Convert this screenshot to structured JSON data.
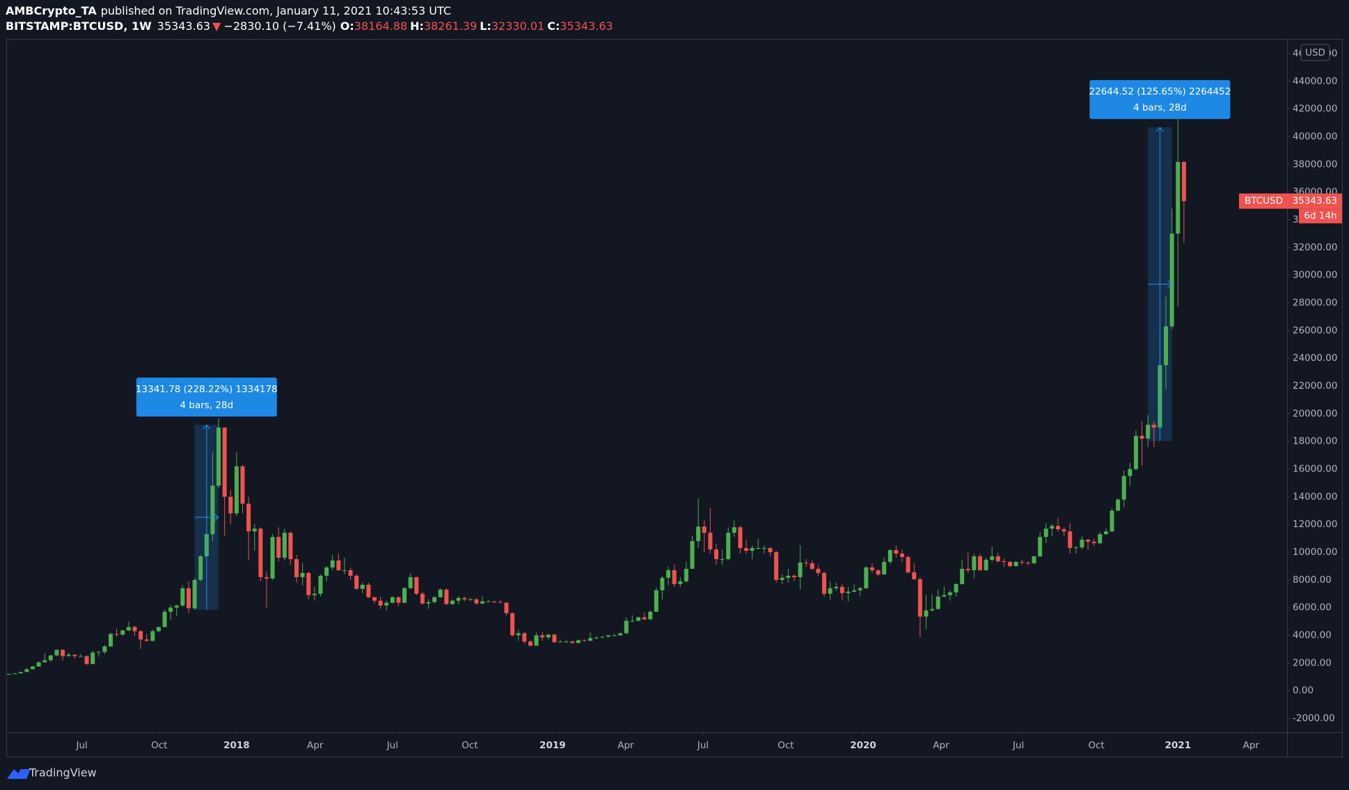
{
  "header": {
    "author": "AMBCrypto_TA",
    "published": "published on TradingView.com, January 11, 2021 10:43:53 UTC",
    "symbol": "BITSTAMP:BTCUSD, 1W",
    "last": "35343.63",
    "direction": "▼",
    "change": "−2830.10 (−7.41%)",
    "ohlc": [
      {
        "key": "O:",
        "value": "38164.88"
      },
      {
        "key": "H:",
        "value": "38261.39"
      },
      {
        "key": "L:",
        "value": "32330.01"
      },
      {
        "key": "C:",
        "value": "35343.63"
      }
    ]
  },
  "footer": {
    "brand": "TradingView"
  },
  "chart_data": {
    "type": "candlestick",
    "currency": "USD",
    "up_color": "#4caf50",
    "down_color": "#ef5350",
    "grid": false,
    "xlim": [
      -0.3,
      213.2
    ],
    "xticks": [
      {
        "value": 12.2,
        "label": "Jul"
      },
      {
        "value": 25.1,
        "label": "Oct"
      },
      {
        "value": 38,
        "label": "2018"
      },
      {
        "value": 51.1,
        "label": "Apr"
      },
      {
        "value": 64,
        "label": "Jul"
      },
      {
        "value": 76.9,
        "label": "Oct"
      },
      {
        "value": 90.7,
        "label": "2019"
      },
      {
        "value": 102.9,
        "label": "Apr"
      },
      {
        "value": 115.8,
        "label": "Jul"
      },
      {
        "value": 129.6,
        "label": "Oct"
      },
      {
        "value": 142.5,
        "label": "2020"
      },
      {
        "value": 155.5,
        "label": "Apr"
      },
      {
        "value": 168.4,
        "label": "Jul"
      },
      {
        "value": 181.4,
        "label": "Oct"
      },
      {
        "value": 195,
        "label": "2021"
      },
      {
        "value": 207.2,
        "label": "Apr"
      }
    ],
    "ylim": [
      -3000,
      47000
    ],
    "yticks": [
      {
        "value": -2000,
        "label": "-2000.00"
      },
      {
        "value": 0,
        "label": "0.00"
      },
      {
        "value": 2000,
        "label": "2000.00"
      },
      {
        "value": 4000,
        "label": "4000.00"
      },
      {
        "value": 6000,
        "label": "6000.00"
      },
      {
        "value": 8000,
        "label": "8000.00"
      },
      {
        "value": 10000,
        "label": "10000.00"
      },
      {
        "value": 12000,
        "label": "12000.00"
      },
      {
        "value": 14000,
        "label": "14000.00"
      },
      {
        "value": 16000,
        "label": "16000.00"
      },
      {
        "value": 18000,
        "label": "18000.00"
      },
      {
        "value": 20000,
        "label": "20000.00"
      },
      {
        "value": 22000,
        "label": "22000.00"
      },
      {
        "value": 24000,
        "label": "24000.00"
      },
      {
        "value": 26000,
        "label": "26000.00"
      },
      {
        "value": 28000,
        "label": "28000.00"
      },
      {
        "value": 30000,
        "label": "30000.00"
      },
      {
        "value": 32000,
        "label": "32000.00"
      },
      {
        "value": 34000,
        "label": "34000.00"
      },
      {
        "value": 36000,
        "label": "36000.00"
      },
      {
        "value": 38000,
        "label": "38000.00"
      },
      {
        "value": 40000,
        "label": "40000.00"
      },
      {
        "value": 42000,
        "label": "42000.00"
      },
      {
        "value": 44000,
        "label": "44000.00"
      },
      {
        "value": 46000,
        "label": "46000.00"
      }
    ],
    "price_label": {
      "symbol": "BTCUSD",
      "countdown": "6d 14h"
    },
    "measures": [
      {
        "label": "13341.78 (228.22%) 1334178",
        "sublabel": "4 bars, 28d",
        "from_bar": 31,
        "to_bar": 35,
        "from": 5846,
        "to": 19188
      },
      {
        "label": "22644.52 (125.65%) 2264452",
        "sublabel": "4 bars, 28d",
        "from_bar": 190,
        "to_bar": 194,
        "from": 18022,
        "to": 40666
      }
    ],
    "ohlc": [
      [
        1180,
        1230,
        1170,
        1200
      ],
      [
        1200,
        1280,
        1190,
        1250
      ],
      [
        1250,
        1360,
        1240,
        1350
      ],
      [
        1350,
        1620,
        1340,
        1550
      ],
      [
        1550,
        1800,
        1540,
        1750
      ],
      [
        1750,
        2100,
        1720,
        2050
      ],
      [
        2050,
        2700,
        2050,
        2200
      ],
      [
        2200,
        2580,
        2100,
        2550
      ],
      [
        2550,
        2980,
        2500,
        2950
      ],
      [
        2950,
        3000,
        2200,
        2500
      ],
      [
        2500,
        2760,
        2450,
        2600
      ],
      [
        2600,
        2600,
        2300,
        2500
      ],
      [
        2500,
        2650,
        2450,
        2500
      ],
      [
        2500,
        2550,
        1850,
        1930
      ],
      [
        1930,
        2900,
        1900,
        2750
      ],
      [
        2750,
        2850,
        2450,
        2800
      ],
      [
        2800,
        3300,
        2650,
        3200
      ],
      [
        3200,
        4200,
        3150,
        4100
      ],
      [
        4100,
        4480,
        3900,
        4050
      ],
      [
        4050,
        4400,
        3950,
        4350
      ],
      [
        4350,
        4980,
        4300,
        4600
      ],
      [
        4600,
        4700,
        3950,
        4300
      ],
      [
        4300,
        4350,
        3000,
        3700
      ],
      [
        3700,
        4100,
        3550,
        3600
      ],
      [
        3600,
        4400,
        3550,
        4300
      ],
      [
        4300,
        4600,
        4200,
        4600
      ],
      [
        4600,
        5850,
        4600,
        5700
      ],
      [
        5700,
        6200,
        5100,
        6000
      ],
      [
        6000,
        6200,
        5400,
        6150
      ],
      [
        6150,
        7600,
        6050,
        7400
      ],
      [
        7400,
        7900,
        5600,
        5950
      ],
      [
        5950,
        8100,
        5850,
        8000
      ],
      [
        8000,
        9800,
        7900,
        9700
      ],
      [
        9700,
        11400,
        9600,
        11300
      ],
      [
        11300,
        17200,
        10800,
        14800
      ],
      [
        14800,
        19666,
        14600,
        19000
      ],
      [
        19000,
        19000,
        11200,
        14000
      ],
      [
        14000,
        14500,
        12000,
        12800
      ],
      [
        12800,
        17200,
        12600,
        16200
      ],
      [
        16200,
        16300,
        12800,
        13500
      ],
      [
        13500,
        14000,
        9400,
        11500
      ],
      [
        11500,
        12000,
        10100,
        11700
      ],
      [
        11700,
        11800,
        7900,
        8200
      ],
      [
        8200,
        8600,
        6000,
        8100
      ],
      [
        8100,
        11300,
        8000,
        11100
      ],
      [
        11100,
        11800,
        9300,
        9600
      ],
      [
        9600,
        11700,
        9400,
        11400
      ],
      [
        11400,
        11500,
        9100,
        9500
      ],
      [
        9500,
        9800,
        7800,
        8200
      ],
      [
        8200,
        9200,
        7600,
        8500
      ],
      [
        8500,
        8600,
        6600,
        6900
      ],
      [
        6900,
        7500,
        6500,
        7000
      ],
      [
        7000,
        8400,
        6800,
        8300
      ],
      [
        8300,
        9000,
        7900,
        8900
      ],
      [
        8900,
        9800,
        8700,
        9400
      ],
      [
        9400,
        9900,
        8650,
        8700
      ],
      [
        8700,
        9600,
        8400,
        8700
      ],
      [
        8700,
        8900,
        8000,
        8300
      ],
      [
        8300,
        8400,
        7300,
        7350
      ],
      [
        7350,
        7800,
        7050,
        7650
      ],
      [
        7650,
        7800,
        6700,
        6750
      ],
      [
        6750,
        6800,
        6300,
        6500
      ],
      [
        6500,
        6800,
        5900,
        6150
      ],
      [
        6150,
        6500,
        5800,
        6350
      ],
      [
        6350,
        6800,
        6300,
        6750
      ],
      [
        6750,
        6800,
        6100,
        6350
      ],
      [
        6350,
        7500,
        6300,
        7400
      ],
      [
        7400,
        8500,
        7350,
        8200
      ],
      [
        8200,
        8250,
        6900,
        7000
      ],
      [
        7000,
        7150,
        6200,
        6300
      ],
      [
        6300,
        6600,
        5900,
        6400
      ],
      [
        6400,
        6800,
        6300,
        6750
      ],
      [
        6750,
        7400,
        6700,
        7300
      ],
      [
        7300,
        7400,
        6200,
        6250
      ],
      [
        6250,
        6600,
        6200,
        6500
      ],
      [
        6500,
        6850,
        6250,
        6700
      ],
      [
        6700,
        6800,
        6450,
        6600
      ],
      [
        6600,
        6700,
        6500,
        6600
      ],
      [
        6600,
        6680,
        6200,
        6300
      ],
      [
        6300,
        6800,
        6250,
        6450
      ],
      [
        6450,
        6550,
        6400,
        6450
      ],
      [
        6450,
        6500,
        6300,
        6400
      ],
      [
        6400,
        6550,
        6350,
        6350
      ],
      [
        6350,
        6400,
        5400,
        5600
      ],
      [
        5600,
        5650,
        3900,
        4000
      ],
      [
        4000,
        4400,
        3600,
        4150
      ],
      [
        4150,
        4250,
        3400,
        3550
      ],
      [
        3550,
        3650,
        3200,
        3250
      ],
      [
        3250,
        4200,
        3250,
        4000
      ],
      [
        4000,
        4250,
        3600,
        3850
      ],
      [
        3850,
        4100,
        3700,
        4050
      ],
      [
        4050,
        4100,
        3500,
        3500
      ],
      [
        3500,
        3700,
        3480,
        3550
      ],
      [
        3550,
        3650,
        3450,
        3550
      ],
      [
        3550,
        3600,
        3400,
        3450
      ],
      [
        3450,
        3700,
        3400,
        3650
      ],
      [
        3650,
        3700,
        3550,
        3600
      ],
      [
        3600,
        4200,
        3600,
        3800
      ],
      [
        3800,
        3900,
        3700,
        3850
      ],
      [
        3850,
        3950,
        3780,
        3900
      ],
      [
        3900,
        4000,
        3850,
        4000
      ],
      [
        4000,
        4100,
        3950,
        4000
      ],
      [
        4000,
        4200,
        3950,
        4150
      ],
      [
        4150,
        5300,
        4100,
        5050
      ],
      [
        5050,
        5450,
        4950,
        5050
      ],
      [
        5050,
        5350,
        5000,
        5300
      ],
      [
        5300,
        5650,
        5100,
        5150
      ],
      [
        5150,
        5800,
        5150,
        5700
      ],
      [
        5700,
        7450,
        5700,
        7250
      ],
      [
        7250,
        8300,
        6600,
        8150
      ],
      [
        8150,
        8950,
        7600,
        8700
      ],
      [
        8700,
        9100,
        7500,
        7700
      ],
      [
        7700,
        8200,
        7500,
        7900
      ],
      [
        7900,
        9300,
        7800,
        8800
      ],
      [
        8800,
        11200,
        8800,
        10800
      ],
      [
        10800,
        13880,
        10300,
        11850
      ],
      [
        11850,
        12300,
        10000,
        11400
      ],
      [
        11400,
        13200,
        9900,
        10200
      ],
      [
        10200,
        10600,
        9100,
        9500
      ],
      [
        9500,
        10200,
        9100,
        9500
      ],
      [
        9500,
        11800,
        9400,
        11400
      ],
      [
        11400,
        12300,
        11100,
        11800
      ],
      [
        11800,
        11900,
        9900,
        10300
      ],
      [
        10300,
        10900,
        9900,
        10100
      ],
      [
        10100,
        10500,
        9500,
        10300
      ],
      [
        10300,
        10950,
        10200,
        10300
      ],
      [
        10300,
        10500,
        9900,
        10300
      ],
      [
        10300,
        10350,
        9700,
        10000
      ],
      [
        10000,
        10100,
        7800,
        8000
      ],
      [
        8000,
        8400,
        7700,
        8150
      ],
      [
        8150,
        8800,
        7800,
        8300
      ],
      [
        8300,
        8400,
        7900,
        8200
      ],
      [
        8200,
        10500,
        7300,
        9250
      ],
      [
        9250,
        9500,
        8950,
        9200
      ],
      [
        9200,
        9400,
        8700,
        8800
      ],
      [
        8800,
        9100,
        8300,
        8500
      ],
      [
        8500,
        8600,
        6800,
        7000
      ],
      [
        7000,
        7900,
        6550,
        7400
      ],
      [
        7400,
        7800,
        7200,
        7500
      ],
      [
        7500,
        7700,
        6550,
        7050
      ],
      [
        7050,
        7500,
        6450,
        7150
      ],
      [
        7150,
        7700,
        7100,
        7250
      ],
      [
        7250,
        7500,
        6850,
        7400
      ],
      [
        7400,
        9000,
        7350,
        8900
      ],
      [
        8900,
        9200,
        8500,
        8700
      ],
      [
        8700,
        8750,
        8250,
        8400
      ],
      [
        8400,
        9600,
        8350,
        9300
      ],
      [
        9300,
        10200,
        9150,
        10150
      ],
      [
        10150,
        10500,
        9600,
        9900
      ],
      [
        9900,
        10200,
        9300,
        9650
      ],
      [
        9650,
        9750,
        8450,
        8550
      ],
      [
        8550,
        9200,
        8000,
        8050
      ],
      [
        8050,
        8200,
        3850,
        5350
      ],
      [
        5350,
        6900,
        4450,
        5800
      ],
      [
        5800,
        6950,
        5700,
        5900
      ],
      [
        5900,
        7300,
        5850,
        6800
      ],
      [
        6800,
        7500,
        6750,
        6900
      ],
      [
        6900,
        7250,
        6500,
        7100
      ],
      [
        7100,
        7750,
        6800,
        7700
      ],
      [
        7700,
        9450,
        7650,
        8800
      ],
      [
        8800,
        10000,
        8500,
        8700
      ],
      [
        8700,
        9900,
        8100,
        9700
      ],
      [
        9700,
        9900,
        8650,
        8700
      ],
      [
        8700,
        9600,
        8650,
        9450
      ],
      [
        9450,
        10400,
        9300,
        9700
      ],
      [
        9700,
        9950,
        9250,
        9350
      ],
      [
        9350,
        9550,
        8950,
        9300
      ],
      [
        9300,
        9350,
        8900,
        9000
      ],
      [
        9000,
        9350,
        8950,
        9300
      ],
      [
        9300,
        9450,
        9100,
        9250
      ],
      [
        9250,
        9350,
        9050,
        9200
      ],
      [
        9200,
        9750,
        9150,
        9700
      ],
      [
        9700,
        11450,
        9650,
        11100
      ],
      [
        11100,
        12100,
        10650,
        11700
      ],
      [
        11700,
        12050,
        11150,
        11900
      ],
      [
        11900,
        12450,
        11500,
        11650
      ],
      [
        11650,
        11800,
        11150,
        11500
      ],
      [
        11500,
        12100,
        9900,
        10300
      ],
      [
        10300,
        10450,
        9900,
        10350
      ],
      [
        10350,
        11150,
        10200,
        10900
      ],
      [
        10900,
        10950,
        10150,
        10750
      ],
      [
        10750,
        10950,
        10450,
        10650
      ],
      [
        10650,
        11450,
        10550,
        11300
      ],
      [
        11300,
        11750,
        11250,
        11500
      ],
      [
        11500,
        13200,
        11450,
        13000
      ],
      [
        13000,
        13900,
        12950,
        13800
      ],
      [
        13800,
        15900,
        13250,
        15500
      ],
      [
        15500,
        16450,
        14800,
        16000
      ],
      [
        16000,
        18800,
        15900,
        18400
      ],
      [
        18400,
        19450,
        16250,
        18200
      ],
      [
        18200,
        19900,
        17600,
        19200
      ],
      [
        19200,
        19450,
        17600,
        19000
      ],
      [
        19000,
        24300,
        19000,
        23500
      ],
      [
        23500,
        28450,
        21800,
        26300
      ],
      [
        26300,
        34800,
        26100,
        33000
      ],
      [
        33000,
        41950,
        27750,
        38173.73
      ],
      [
        38164.88,
        38261.39,
        32330.01,
        35343.63
      ]
    ]
  }
}
